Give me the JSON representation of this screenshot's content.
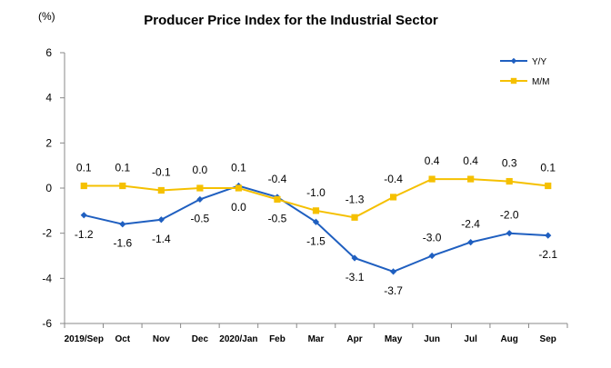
{
  "chart_data": {
    "type": "line",
    "title": "Producer Price Index for the Industrial Sector",
    "unit_label": "(%)",
    "categories": [
      "2019/Sep",
      "Oct",
      "Nov",
      "Dec",
      "2020/Jan",
      "Feb",
      "Mar",
      "Apr",
      "May",
      "Jun",
      "Jul",
      "Aug",
      "Sep"
    ],
    "ylim": [
      -6,
      6
    ],
    "yticks": [
      6,
      4,
      2,
      0,
      -2,
      -4,
      -6
    ],
    "grid": false,
    "legend_position": "top-right",
    "series": [
      {
        "name": "Y/Y",
        "color": "#1F5FC0",
        "marker": "diamond",
        "values": [
          -1.2,
          -1.6,
          -1.4,
          -0.5,
          0.1,
          -0.4,
          -1.5,
          -3.1,
          -3.7,
          -3.0,
          -2.4,
          -2.0,
          -2.1
        ],
        "labels": [
          "-1.2",
          "-1.6",
          "-1.4",
          "-0.5",
          "0.1",
          "-0.4",
          "-1.5",
          "-3.1",
          "-3.7",
          "-3.0",
          "-2.4",
          "-2.0",
          "-2.1"
        ]
      },
      {
        "name": "M/M",
        "color": "#F5C000",
        "marker": "square",
        "values": [
          0.1,
          0.1,
          -0.1,
          0.0,
          0.0,
          -0.5,
          -1.0,
          -1.3,
          -0.4,
          0.4,
          0.4,
          0.3,
          0.1
        ],
        "labels": [
          "0.1",
          "0.1",
          "-0.1",
          "0.0",
          "0.0",
          "-0.5",
          "-1.0",
          "-1.3",
          "-0.4",
          "0.4",
          "0.4",
          "0.3",
          "0.1"
        ]
      }
    ]
  }
}
